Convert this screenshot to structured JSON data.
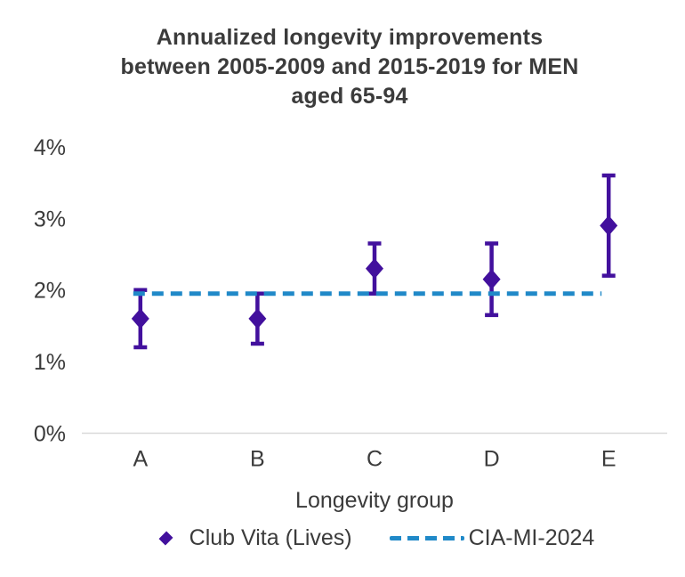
{
  "title": {
    "lines": [
      "Annualized longevity improvements",
      "between 2005-2009 and 2015-2019 for MEN",
      "aged 65-94"
    ]
  },
  "legend": {
    "items": [
      {
        "label": "Club Vita (Lives)",
        "marker": "diamond",
        "color": "#42109D"
      },
      {
        "label": "CIA-MI-2024",
        "marker": "dashed-line",
        "color": "#2089C8"
      }
    ]
  },
  "colors": {
    "series_purple": "#42109D",
    "reference_blue": "#2089C8",
    "text": "#3B3B3B",
    "axis_line": "#D9D9D9",
    "background": "#FFFFFF"
  },
  "chart_data": {
    "type": "scatter",
    "title": "Annualized longevity improvements between 2005-2009 and 2015-2019 for MEN aged 65-94",
    "xlabel": "Longevity group",
    "ylabel": "",
    "categories": [
      "A",
      "B",
      "C",
      "D",
      "E"
    ],
    "ylim": [
      0,
      4
    ],
    "yticks": [
      "0%",
      "1%",
      "2%",
      "3%",
      "4%"
    ],
    "ytick_values": [
      0,
      1,
      2,
      3,
      4
    ],
    "grid": false,
    "legend_position": "bottom",
    "axis_color": "#D9D9D9",
    "text_color": "#3B3B3B",
    "series": [
      {
        "name": "Club Vita (Lives)",
        "type": "scatter-errorbar",
        "marker": "diamond",
        "color": "#42109D",
        "values": [
          1.6,
          1.6,
          2.3,
          2.15,
          2.9
        ],
        "error_low": [
          1.2,
          1.25,
          1.95,
          1.65,
          2.2
        ],
        "error_high": [
          2.0,
          1.95,
          2.65,
          2.65,
          3.6
        ]
      },
      {
        "name": "CIA-MI-2024",
        "type": "dashed-reference-line",
        "color": "#2089C8",
        "value": 1.95
      }
    ]
  }
}
